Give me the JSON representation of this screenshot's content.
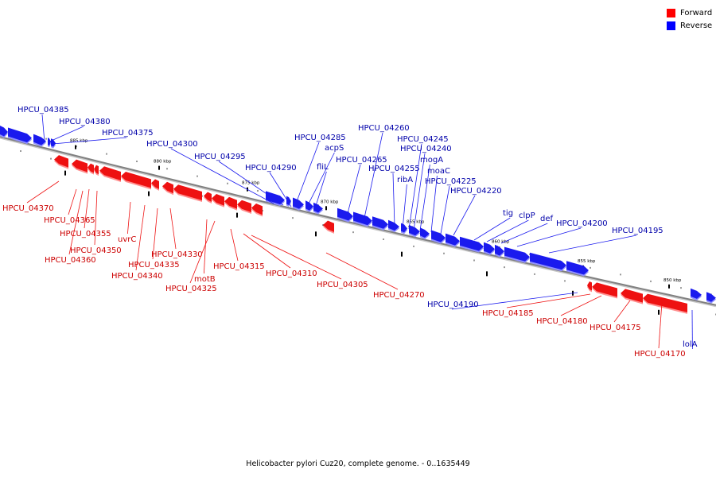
{
  "caption": "Helicobacter pylori Cuz20, complete genome. - 0..1635449",
  "legend": [
    {
      "label": "Forward",
      "color": "#ff0000"
    },
    {
      "label": "Reverse",
      "color": "#0000ff"
    }
  ],
  "colors": {
    "forward": "#ee1111",
    "reverse": "#1a1aee",
    "forward_label": "#cc0000",
    "reverse_label": "#0000aa",
    "backbone": "#808080"
  },
  "ticks": [
    "885 kbp",
    "880 kbp",
    "875 kbp",
    "870 kbp",
    "865 kbp",
    "860 kbp",
    "855 kbp",
    "850 kbp"
  ],
  "genes": [
    {
      "label": "HPCU_04385",
      "strand": "reverse"
    },
    {
      "label": "HPCU_04380",
      "strand": "reverse"
    },
    {
      "label": "HPCU_04375",
      "strand": "reverse"
    },
    {
      "label": "HPCU_04300",
      "strand": "reverse"
    },
    {
      "label": "HPCU_04295",
      "strand": "reverse"
    },
    {
      "label": "HPCU_04290",
      "strand": "reverse"
    },
    {
      "label": "HPCU_04285",
      "strand": "reverse"
    },
    {
      "label": "acpS",
      "strand": "reverse"
    },
    {
      "label": "fliL",
      "strand": "reverse"
    },
    {
      "label": "HPCU_04265",
      "strand": "reverse"
    },
    {
      "label": "HPCU_04260",
      "strand": "reverse"
    },
    {
      "label": "HPCU_04255",
      "strand": "reverse"
    },
    {
      "label": "ribA",
      "strand": "reverse"
    },
    {
      "label": "HPCU_04245",
      "strand": "reverse"
    },
    {
      "label": "HPCU_04240",
      "strand": "reverse"
    },
    {
      "label": "mogA",
      "strand": "reverse"
    },
    {
      "label": "moaC",
      "strand": "reverse"
    },
    {
      "label": "HPCU_04225",
      "strand": "reverse"
    },
    {
      "label": "HPCU_04220",
      "strand": "reverse"
    },
    {
      "label": "tig",
      "strand": "reverse"
    },
    {
      "label": "clpP",
      "strand": "reverse"
    },
    {
      "label": "def",
      "strand": "reverse"
    },
    {
      "label": "HPCU_04200",
      "strand": "reverse"
    },
    {
      "label": "HPCU_04195",
      "strand": "reverse"
    },
    {
      "label": "HPCU_04190",
      "strand": "reverse"
    },
    {
      "label": "lolA",
      "strand": "reverse"
    },
    {
      "label": "HPCU_04370",
      "strand": "forward"
    },
    {
      "label": "HPCU_04365",
      "strand": "forward"
    },
    {
      "label": "HPCU_04355",
      "strand": "forward"
    },
    {
      "label": "HPCU_04350",
      "strand": "forward"
    },
    {
      "label": "HPCU_04360",
      "strand": "forward"
    },
    {
      "label": "uvrC",
      "strand": "forward"
    },
    {
      "label": "HPCU_04340",
      "strand": "forward"
    },
    {
      "label": "HPCU_04335",
      "strand": "forward"
    },
    {
      "label": "HPCU_04330",
      "strand": "forward"
    },
    {
      "label": "motB",
      "strand": "forward"
    },
    {
      "label": "HPCU_04325",
      "strand": "forward"
    },
    {
      "label": "HPCU_04315",
      "strand": "forward"
    },
    {
      "label": "HPCU_04310",
      "strand": "forward"
    },
    {
      "label": "HPCU_04305",
      "strand": "forward"
    },
    {
      "label": "HPCU_04270",
      "strand": "forward"
    },
    {
      "label": "HPCU_04185",
      "strand": "forward"
    },
    {
      "label": "HPCU_04180",
      "strand": "forward"
    },
    {
      "label": "HPCU_04175",
      "strand": "forward"
    },
    {
      "label": "HPCU_04170",
      "strand": "forward"
    }
  ]
}
